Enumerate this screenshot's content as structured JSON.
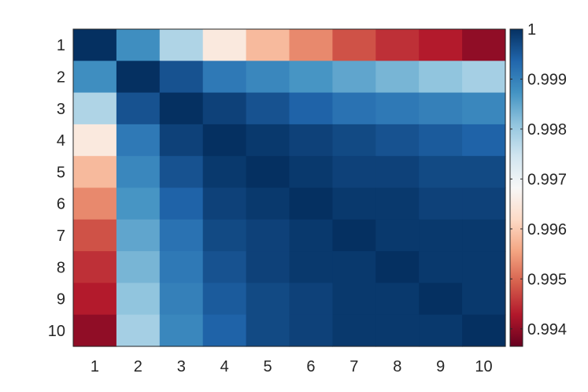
{
  "chart_data": {
    "type": "heatmap",
    "title": "",
    "xlabel": "",
    "ylabel": "",
    "x_categories": [
      "1",
      "2",
      "3",
      "4",
      "5",
      "6",
      "7",
      "8",
      "9",
      "10"
    ],
    "y_categories": [
      "1",
      "2",
      "3",
      "4",
      "5",
      "6",
      "7",
      "8",
      "9",
      "10"
    ],
    "values": [
      [
        1.0,
        0.9988,
        0.9978,
        0.9965,
        0.9958,
        0.9953,
        0.9948,
        0.9945,
        0.9943,
        0.994
      ],
      [
        0.9988,
        1.0,
        0.9996,
        0.9991,
        0.9989,
        0.9987,
        0.9985,
        0.9983,
        0.9981,
        0.9979
      ],
      [
        0.9978,
        0.9996,
        1.0,
        0.9998,
        0.9996,
        0.9994,
        0.9992,
        0.9991,
        0.999,
        0.9989
      ],
      [
        0.9965,
        0.9991,
        0.9998,
        1.0,
        0.9999,
        0.9998,
        0.9997,
        0.9996,
        0.9995,
        0.9994
      ],
      [
        0.9958,
        0.9989,
        0.9996,
        0.9999,
        1.0,
        0.9999,
        0.9998,
        0.9998,
        0.9997,
        0.9997
      ],
      [
        0.9953,
        0.9987,
        0.9994,
        0.9998,
        0.9999,
        1.0,
        0.9999,
        0.9999,
        0.9998,
        0.9998
      ],
      [
        0.9948,
        0.9985,
        0.9992,
        0.9997,
        0.9998,
        0.9999,
        1.0,
        0.9999,
        0.9999,
        0.9999
      ],
      [
        0.9945,
        0.9983,
        0.9991,
        0.9996,
        0.9998,
        0.9999,
        0.9999,
        1.0,
        0.9999,
        0.9999
      ],
      [
        0.9943,
        0.9981,
        0.999,
        0.9995,
        0.9997,
        0.9998,
        0.9999,
        0.9999,
        1.0,
        0.9999
      ],
      [
        0.994,
        0.9979,
        0.9989,
        0.9994,
        0.9997,
        0.9998,
        0.9999,
        0.9999,
        0.9999,
        1.0
      ]
    ],
    "colorbar": {
      "min": 0.99365,
      "max": 1.0,
      "ticks": [
        1,
        0.999,
        0.998,
        0.997,
        0.996,
        0.995,
        0.994
      ],
      "tick_labels": [
        "1",
        "0.999",
        "0.998",
        "0.997",
        "0.996",
        "0.995",
        "0.994"
      ]
    },
    "colormap": [
      "#67001f",
      "#b2182b",
      "#d6604d",
      "#f4a582",
      "#fddbc7",
      "#f7f7f7",
      "#d1e5f0",
      "#92c5de",
      "#4393c3",
      "#2166ac",
      "#053061"
    ]
  }
}
